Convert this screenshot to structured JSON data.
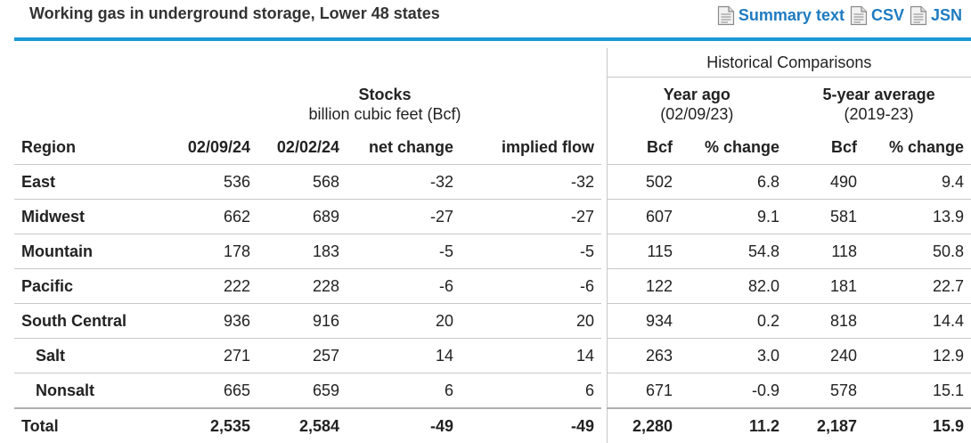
{
  "title": "Working gas in underground storage, Lower 48 states",
  "links": [
    {
      "label": "Summary text",
      "icon": "document-icon"
    },
    {
      "label": "CSV",
      "icon": "document-icon"
    },
    {
      "label": "JSN",
      "icon": "document-icon"
    }
  ],
  "table": {
    "historical_header": "Historical Comparisons",
    "groups": {
      "stocks": {
        "title": "Stocks",
        "subtitle": "billion cubic feet (Bcf)"
      },
      "year_ago": {
        "title": "Year ago",
        "subtitle": "(02/09/23)"
      },
      "five_year": {
        "title": "5-year average",
        "subtitle": "(2019-23)"
      }
    },
    "columns": [
      "Region",
      "02/09/24",
      "02/02/24",
      "net change",
      "implied flow",
      "Bcf",
      "% change",
      "Bcf",
      "% change"
    ],
    "rows": [
      {
        "region": "East",
        "sub": false,
        "v": [
          "536",
          "568",
          "-32",
          "-32",
          "502",
          "6.8",
          "490",
          "9.4"
        ]
      },
      {
        "region": "Midwest",
        "sub": false,
        "v": [
          "662",
          "689",
          "-27",
          "-27",
          "607",
          "9.1",
          "581",
          "13.9"
        ]
      },
      {
        "region": "Mountain",
        "sub": false,
        "v": [
          "178",
          "183",
          "-5",
          "-5",
          "115",
          "54.8",
          "118",
          "50.8"
        ]
      },
      {
        "region": "Pacific",
        "sub": false,
        "v": [
          "222",
          "228",
          "-6",
          "-6",
          "122",
          "82.0",
          "181",
          "22.7"
        ]
      },
      {
        "region": "South Central",
        "sub": false,
        "v": [
          "936",
          "916",
          "20",
          "20",
          "934",
          "0.2",
          "818",
          "14.4"
        ]
      },
      {
        "region": "Salt",
        "sub": true,
        "v": [
          "271",
          "257",
          "14",
          "14",
          "263",
          "3.0",
          "240",
          "12.9"
        ]
      },
      {
        "region": "Nonsalt",
        "sub": true,
        "v": [
          "665",
          "659",
          "6",
          "6",
          "671",
          "-0.9",
          "578",
          "15.1"
        ]
      }
    ],
    "total": {
      "region": "Total",
      "v": [
        "2,535",
        "2,584",
        "-49",
        "-49",
        "2,280",
        "11.2",
        "2,187",
        "15.9"
      ]
    }
  }
}
